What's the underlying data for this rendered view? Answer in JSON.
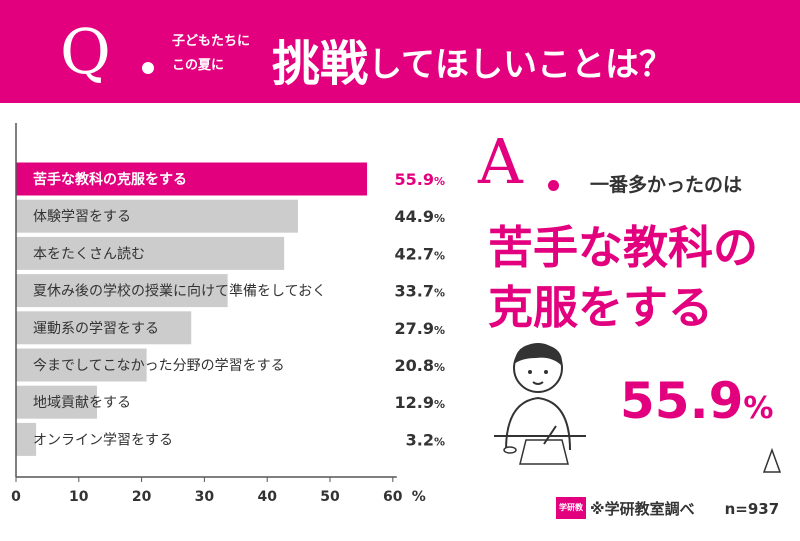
{
  "header": {
    "q": "Q",
    "sub_line1": "子どもたちに",
    "sub_line2": "この夏に",
    "main_big": "挑戦",
    "main_rest": "してほしいことは？"
  },
  "answer": {
    "a": "A",
    "lead": "一番多かったのは",
    "answer_line1": "苦手な教科の",
    "answer_line2": "克服をする",
    "percent_value": "55.9",
    "percent_unit": "%"
  },
  "footer": {
    "source": "※学研教室調べ",
    "n": "n=937",
    "badge": "学研教室"
  },
  "colors": {
    "accent": "#e3007f",
    "bar": "#cccccc",
    "axis": "#555555"
  },
  "chart_data": {
    "type": "bar",
    "orientation": "horizontal",
    "categories": [
      "苦手な教科の克服をする",
      "体験学習をする",
      "本をたくさん読む",
      "夏休み後の学校の授業に向けて準備をしておく",
      "運動系の学習をする",
      "今までしてこなかった分野の学習をする",
      "地域貢献をする",
      "オンライン学習をする"
    ],
    "values": [
      55.9,
      44.9,
      42.7,
      33.7,
      27.9,
      20.8,
      12.9,
      3.2
    ],
    "value_labels": [
      "55.9",
      "44.9",
      "42.7",
      "33.7",
      "27.9",
      "20.8",
      "12.9",
      "3.2"
    ],
    "value_unit": "%",
    "highlight_index": 0,
    "xlim": [
      0,
      60
    ],
    "xticks": [
      0,
      10,
      20,
      30,
      40,
      50,
      60
    ],
    "xunit": "%",
    "grid": false
  }
}
